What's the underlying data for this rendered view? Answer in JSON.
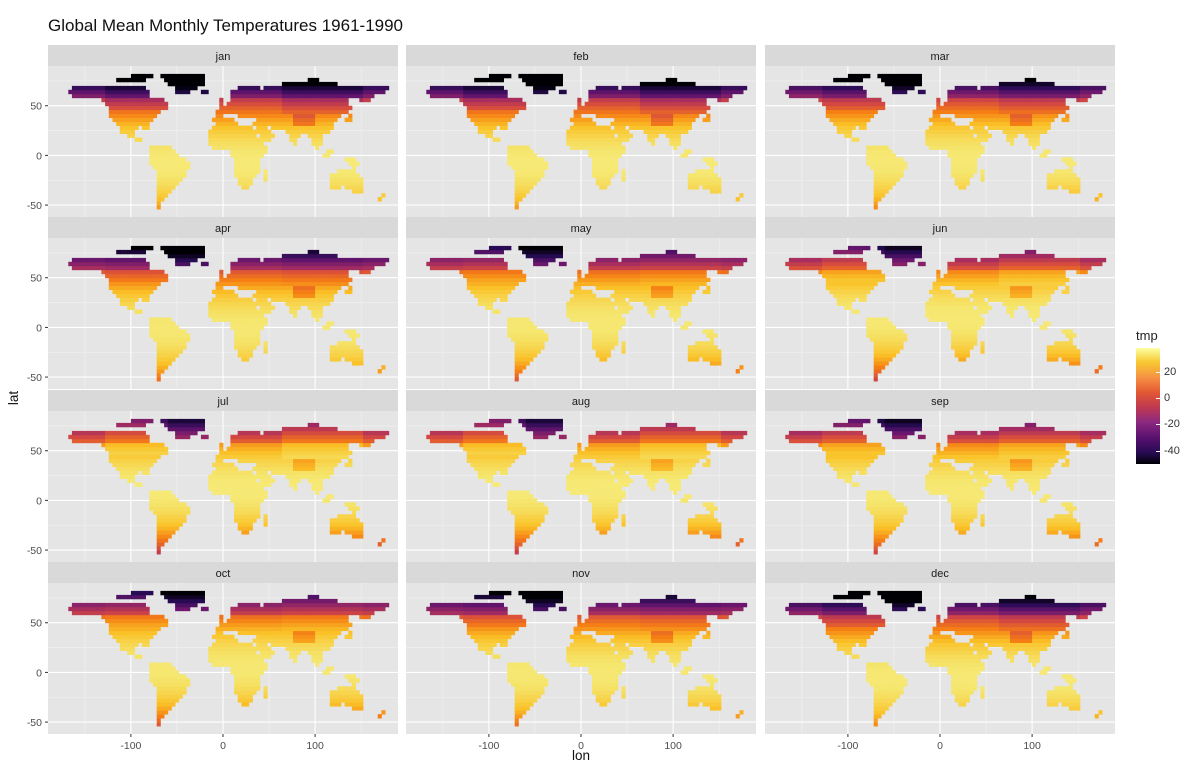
{
  "chart_data": {
    "type": "heatmap",
    "title": "Global Mean Monthly Temperatures 1961-1990",
    "xlabel": "lon",
    "ylabel": "lat",
    "x_ticks": [
      -100,
      0,
      100
    ],
    "y_ticks": [
      -50,
      0,
      50
    ],
    "xlim": [
      -190,
      190
    ],
    "ylim": [
      -62,
      90
    ],
    "facets": [
      "jan",
      "feb",
      "mar",
      "apr",
      "may",
      "jun",
      "jul",
      "aug",
      "sep",
      "oct",
      "nov",
      "dec"
    ],
    "facet_layout": {
      "rows": 4,
      "cols": 3
    },
    "fill_variable": "tmp",
    "colorscale": "inferno",
    "legend": {
      "title": "tmp",
      "placement": "right",
      "ticks": [
        20,
        0,
        -20,
        -40
      ],
      "range": [
        -50,
        38
      ]
    },
    "grid": true,
    "panel_background": "#e5e5e5",
    "strip_background": "#d9d9d9"
  }
}
